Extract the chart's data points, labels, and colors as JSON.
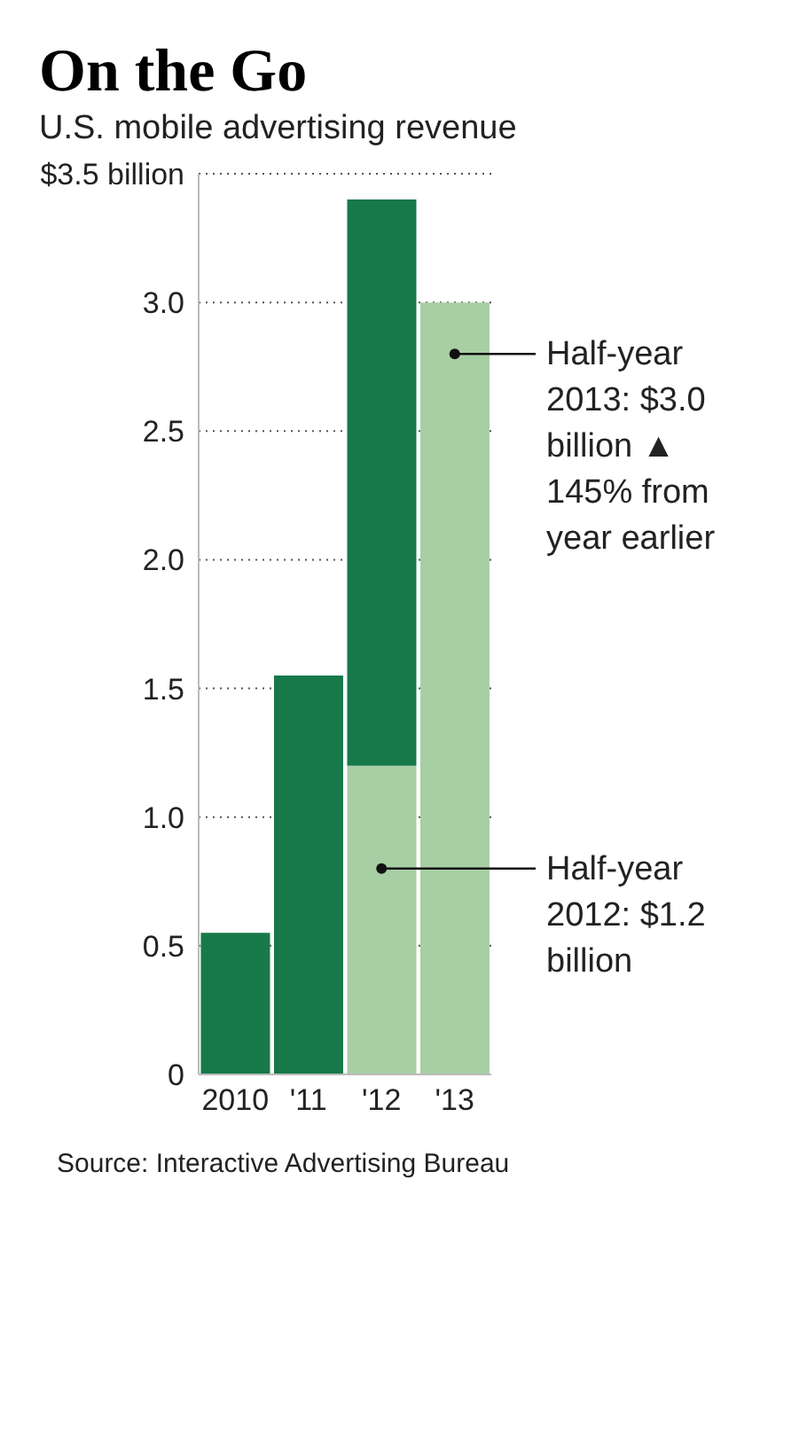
{
  "chart_data": {
    "type": "bar",
    "title": "On the Go",
    "subtitle": "U.S. mobile advertising revenue",
    "categories": [
      "2010",
      "'11",
      "'12",
      "'13"
    ],
    "stacked": true,
    "series": [
      {
        "color": "#a8cfa4",
        "values": [
          null,
          null,
          1.2,
          3.0
        ]
      },
      {
        "color": "#17794a",
        "values": [
          0.55,
          1.55,
          2.2,
          null
        ]
      }
    ],
    "ylim": [
      0,
      3.5
    ],
    "yticks": [
      0,
      0.5,
      {
        "value": 1,
        "label": "1.0"
      },
      1.5,
      {
        "value": 2,
        "label": "2.0"
      },
      2.5,
      {
        "value": 3,
        "label": "3.0"
      },
      {
        "value": 3.5,
        "label": "$3.5 billion"
      }
    ],
    "grid": "y",
    "line_style": "dotted",
    "annotations": [
      {
        "text": "Half-year 2013: $3.0 billion ▲ 145% from year earlier",
        "x": "'13",
        "y": 2.8
      },
      {
        "text": "Half-year 2012: $1.2 billion",
        "x": "'12",
        "y": 0.8
      },
      "Source: Interactive Advertising Bureau"
    ]
  }
}
